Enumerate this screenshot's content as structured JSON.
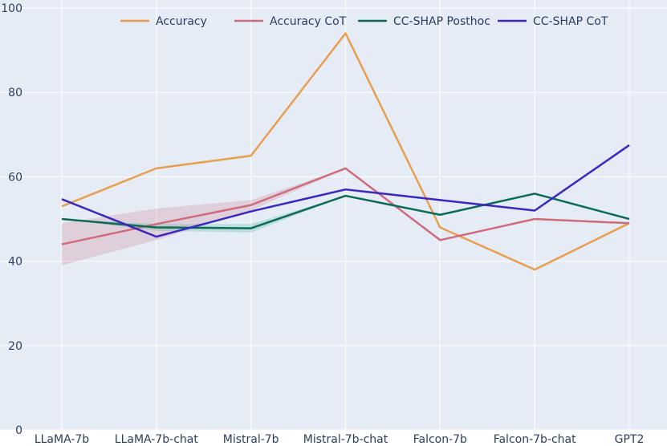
{
  "chart_data": {
    "type": "line",
    "categories": [
      "LLaMA-7b",
      "LLaMA-7b-chat",
      "Mistral-7b",
      "Mistral-7b-chat",
      "Falcon-7b",
      "Falcon-7b-chat",
      "GPT2"
    ],
    "ylim": [
      0,
      100
    ],
    "yticks": [
      "0",
      "20",
      "40",
      "60",
      "80",
      "100"
    ],
    "grid": true,
    "legend_position": "top",
    "series": [
      {
        "name": "Accuracy",
        "color": "#e89f4e",
        "values": [
          53,
          62,
          65,
          94,
          48,
          38,
          49
        ]
      },
      {
        "name": "Accuracy CoT",
        "color": "#cf6b7a",
        "values": [
          44,
          48.8,
          53.3,
          62,
          45,
          50,
          49
        ],
        "band": {
          "lower": [
            39,
            45,
            52,
            62,
            45,
            50,
            49
          ],
          "upper": [
            49,
            52.5,
            54.5,
            62,
            45,
            50,
            49
          ],
          "color": "#cf6b7a"
        }
      },
      {
        "name": "CC-SHAP Posthoc",
        "color": "#0b6b55",
        "values": [
          50,
          48,
          47.8,
          55.5,
          51,
          56,
          50
        ],
        "band": {
          "lower": [
            50,
            47.2,
            46.8,
            55.5,
            51,
            56,
            50
          ],
          "upper": [
            50,
            48.8,
            48.8,
            55.5,
            51,
            56,
            50
          ],
          "color": "#2aa88a"
        }
      },
      {
        "name": "CC-SHAP CoT",
        "color": "#3a28c0",
        "values": [
          54.7,
          45.8,
          51.8,
          57,
          54.5,
          52,
          67.5
        ]
      }
    ]
  }
}
